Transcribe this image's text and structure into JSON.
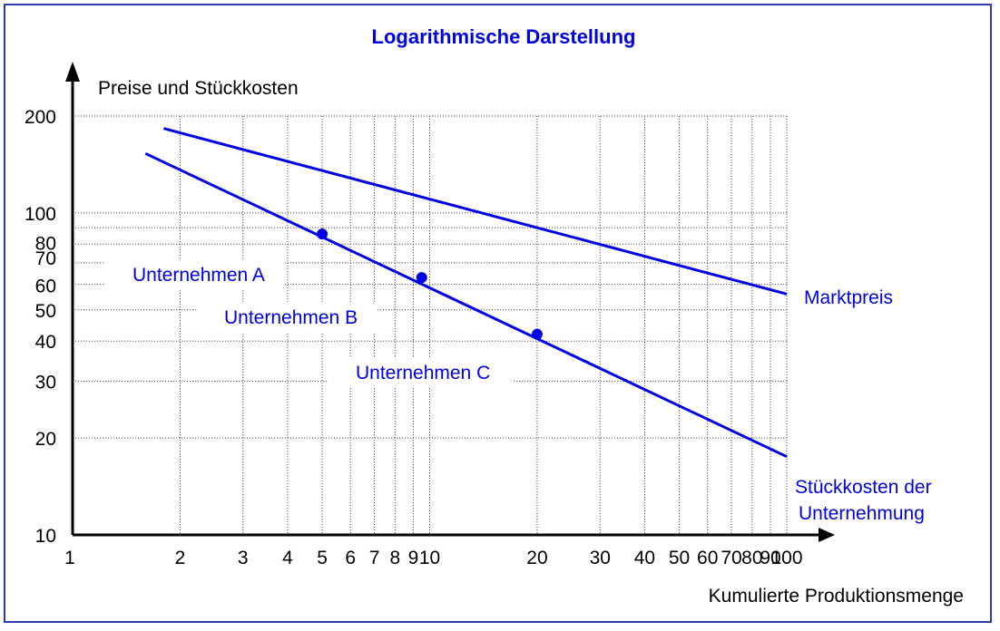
{
  "chart_data": {
    "type": "line",
    "title": "Logarithmische Darstellung",
    "xlabel": "Kumulierte Produktionsmenge",
    "ylabel": "Preise und Stückkosten",
    "xscale": "log",
    "yscale": "log",
    "xlim": [
      1,
      100
    ],
    "ylim": [
      10,
      200
    ],
    "grid": true,
    "x_ticks": [
      {
        "value": 1,
        "label": "1"
      },
      {
        "value": 2,
        "label": "2"
      },
      {
        "value": 3,
        "label": "3"
      },
      {
        "value": 4,
        "label": "4"
      },
      {
        "value": 5,
        "label": "5"
      },
      {
        "value": 6,
        "label": "6"
      },
      {
        "value": 7,
        "label": "7"
      },
      {
        "value": 8,
        "label": "8"
      },
      {
        "value": 9,
        "label": "9"
      },
      {
        "value": 10,
        "label": "10"
      },
      {
        "value": 20,
        "label": "20"
      },
      {
        "value": 30,
        "label": "30"
      },
      {
        "value": 40,
        "label": "40"
      },
      {
        "value": 50,
        "label": "50"
      },
      {
        "value": 60,
        "label": "60"
      },
      {
        "value": 70,
        "label": "70"
      },
      {
        "value": 80,
        "label": "80"
      },
      {
        "value": 90,
        "label": "90"
      },
      {
        "value": 100,
        "label": "100"
      }
    ],
    "y_ticks": [
      {
        "value": 10,
        "label": "10"
      },
      {
        "value": 20,
        "label": "20"
      },
      {
        "value": 30,
        "label": "30"
      },
      {
        "value": 40,
        "label": "40"
      },
      {
        "value": 50,
        "label": "50"
      },
      {
        "value": 60,
        "label": "60"
      },
      {
        "value": 70,
        "label": "70"
      },
      {
        "value": 80,
        "label": "80"
      },
      {
        "value": 100,
        "label": "100"
      },
      {
        "value": 200,
        "label": "200"
      }
    ],
    "series": [
      {
        "name": "Marktpreis",
        "color": "#0000e6",
        "x": [
          1.8,
          100
        ],
        "y": [
          183,
          56
        ]
      },
      {
        "name": "Stückkosten der Unternehmung",
        "color": "#0000e6",
        "x": [
          1.6,
          100
        ],
        "y": [
          153,
          17.5
        ]
      }
    ],
    "points": [
      {
        "label": "Unternehmen A",
        "x": 5,
        "y": 86
      },
      {
        "label": "Unternehmen B",
        "x": 9.5,
        "y": 63
      },
      {
        "label": "Unternehmen C",
        "x": 20,
        "y": 42
      }
    ],
    "series_labels": {
      "market": "Marktpreis",
      "cost_line1": "Stückkosten der",
      "cost_line2": "Unternehmung"
    }
  }
}
